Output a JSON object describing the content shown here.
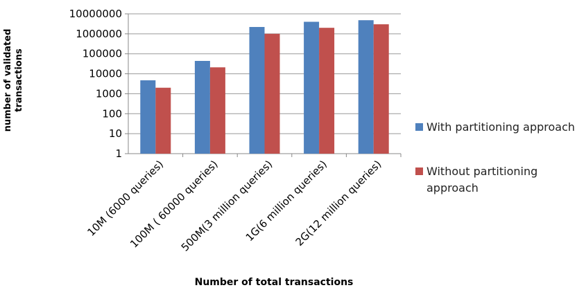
{
  "chart_data": {
    "type": "bar",
    "x_label": "Number of total transactions",
    "y_label": "number of validated transactions",
    "categories": [
      "10M (6000 queries)",
      "100M ( 60000 queries)",
      "500M(3 million queries)",
      "1G(6 million queries)",
      "2G(12 million queries)"
    ],
    "series": [
      {
        "name": "With partitioning approach",
        "color": "#4f81bd",
        "values": [
          4700,
          44000,
          2200000,
          4000000,
          4800000
        ]
      },
      {
        "name": "Without partitioning approach",
        "color": "#c0504d",
        "values": [
          2000,
          21000,
          1000000,
          2000000,
          3000000
        ]
      }
    ],
    "log_scale": true,
    "ylim": [
      1,
      10000000
    ],
    "yticks": [
      1,
      10,
      100,
      1000,
      10000,
      100000,
      1000000,
      10000000
    ],
    "grid": true,
    "legend": "right"
  }
}
